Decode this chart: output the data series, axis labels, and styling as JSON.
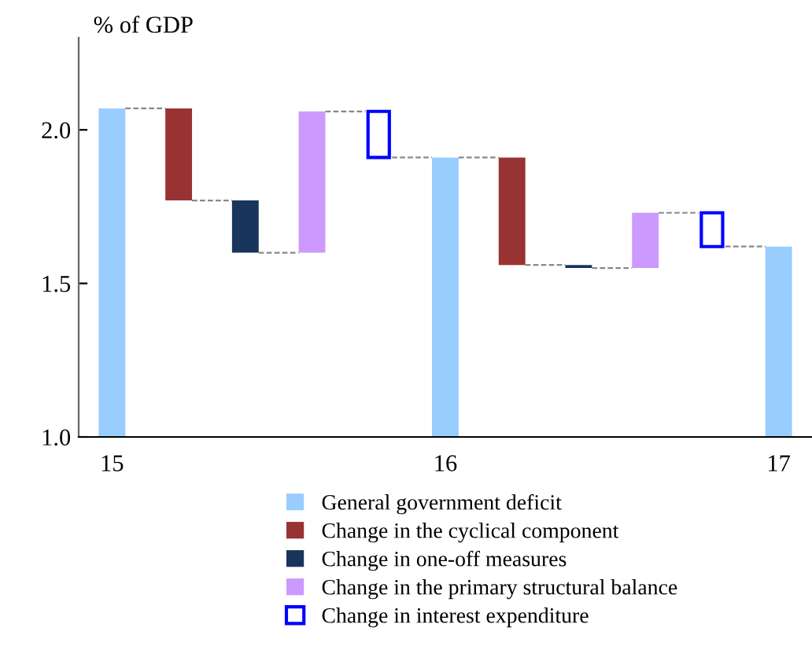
{
  "chart_data": {
    "type": "bar",
    "ylabel": "% of GDP",
    "categories": [
      "15",
      null,
      null,
      null,
      null,
      "16",
      null,
      null,
      null,
      null,
      "17"
    ],
    "series": [
      {
        "name": "General government deficit",
        "color": "#99ccff",
        "values": [
          1.07,
          null,
          null,
          null,
          null,
          0.91,
          null,
          null,
          null,
          null,
          0.62
        ],
        "base": [
          1.0,
          null,
          null,
          null,
          null,
          1.0,
          null,
          null,
          null,
          null,
          1.0
        ]
      },
      {
        "name": "Change in the cyclical component",
        "color": "#993333",
        "values": [
          null,
          -0.3,
          null,
          null,
          null,
          null,
          -0.35,
          null,
          null,
          null,
          null
        ],
        "base": [
          null,
          2.07,
          null,
          null,
          null,
          null,
          1.91,
          null,
          null,
          null,
          null
        ]
      },
      {
        "name": "Change in one-off measures",
        "color": "#1a355b",
        "values": [
          null,
          null,
          -0.17,
          null,
          null,
          null,
          null,
          -0.01,
          null,
          null,
          null
        ],
        "base": [
          null,
          null,
          1.77,
          null,
          null,
          null,
          null,
          1.56,
          null,
          null,
          null
        ]
      },
      {
        "name": "Change in the primary structural balance",
        "color": "#cc99ff",
        "values": [
          null,
          null,
          null,
          0.46,
          null,
          null,
          null,
          null,
          0.18,
          null,
          null
        ],
        "base": [
          null,
          null,
          null,
          1.6,
          null,
          null,
          null,
          null,
          1.55,
          null,
          null
        ]
      },
      {
        "name": "Change in interest expenditure",
        "color": "#0000ff",
        "values": [
          null,
          null,
          null,
          null,
          -0.15,
          null,
          null,
          null,
          null,
          -0.11,
          null
        ],
        "base": [
          null,
          null,
          null,
          null,
          2.06,
          null,
          null,
          null,
          null,
          1.73,
          null
        ]
      }
    ],
    "ylim": [
      1.0,
      2.3
    ],
    "yticks": [
      {
        "value": 1.0,
        "label": "1.0"
      },
      1.5,
      {
        "value": 2.0,
        "label": "2.0"
      }
    ],
    "grid": false,
    "legend": "bottom"
  }
}
